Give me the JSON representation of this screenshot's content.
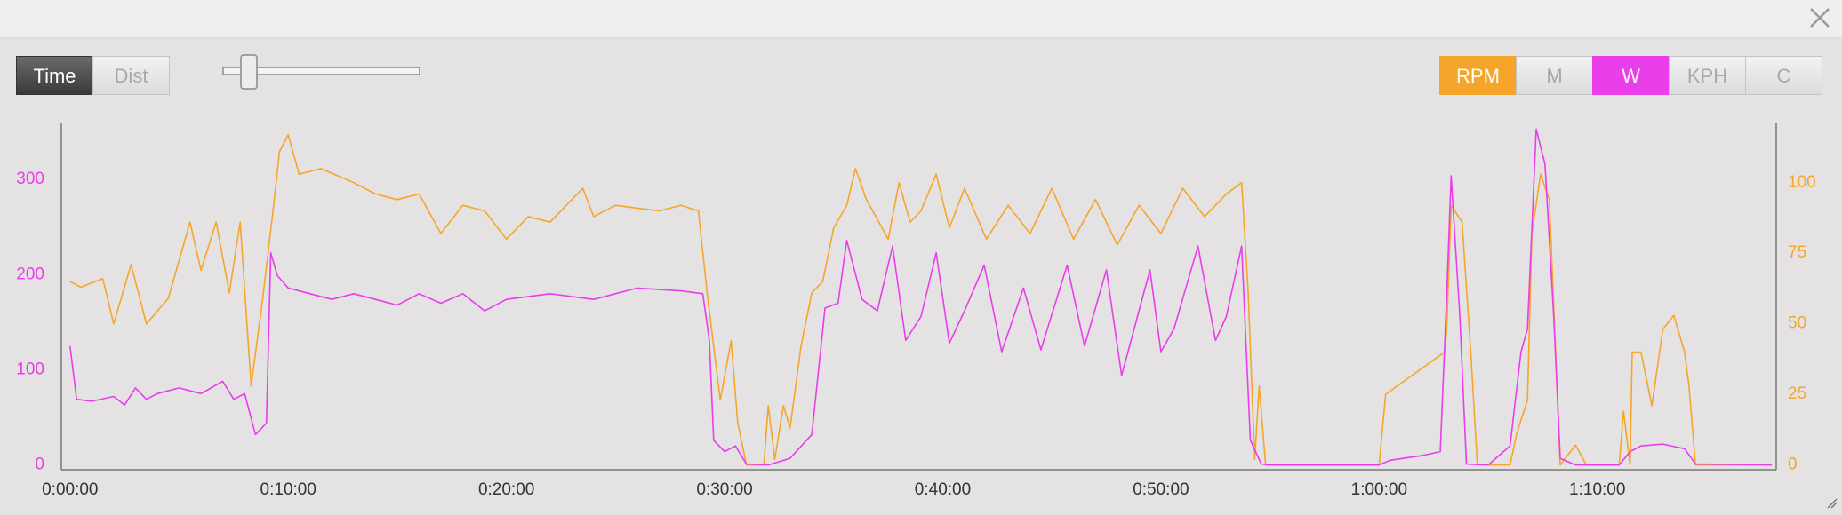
{
  "ui": {
    "mode_buttons": [
      {
        "label": "Time",
        "active": true
      },
      {
        "label": "Dist",
        "active": false
      }
    ],
    "metric_buttons": [
      {
        "label": "RPM",
        "active": true,
        "color": "#f5a62a"
      },
      {
        "label": "M",
        "active": false,
        "color": "#f5a62a"
      },
      {
        "label": "W",
        "active": true,
        "color": "#e93ee9"
      },
      {
        "label": "KPH",
        "active": false,
        "color": "#f5a62a"
      },
      {
        "label": "C",
        "active": false,
        "color": "#f5a62a"
      }
    ]
  },
  "chart_data": {
    "type": "line",
    "xlim": [
      -0.4,
      78.2
    ],
    "xticks": [
      {
        "value": 0,
        "label": "0:00:00"
      },
      {
        "value": 10,
        "label": "0:10:00"
      },
      {
        "value": 20,
        "label": "0:20:00"
      },
      {
        "value": 30,
        "label": "0:30:00"
      },
      {
        "value": 40,
        "label": "0:40:00"
      },
      {
        "value": 50,
        "label": "0:50:00"
      },
      {
        "value": 60,
        "label": "1:00:00"
      },
      {
        "value": 70,
        "label": "1:10:00"
      }
    ],
    "ylim": [
      -5,
      359
    ],
    "yticks": [
      0,
      100,
      200,
      300
    ],
    "y2lim": [
      -1.7,
      121
    ],
    "y2ticks": [
      0,
      25,
      50,
      75,
      100
    ],
    "series": [
      {
        "color": "#e93ee9",
        "axis": "y",
        "x": [
          0,
          0.3,
          1,
          2,
          2.5,
          3,
          3.5,
          4,
          5,
          6,
          7,
          7.5,
          8,
          8.5,
          9,
          9.2,
          9.5,
          10,
          11,
          12,
          13,
          14,
          15,
          16,
          17,
          18,
          19,
          20,
          22,
          24,
          26,
          28,
          29,
          29.3,
          29.5,
          30,
          30.5,
          31,
          32,
          33,
          34,
          34.6,
          35.2,
          35.6,
          36.3,
          37,
          37.7,
          38.3,
          39,
          39.7,
          40.3,
          41,
          41.9,
          42.7,
          43.7,
          44.5,
          45.7,
          46.5,
          47.5,
          48.2,
          49.5,
          50,
          50.6,
          51.7,
          52.5,
          53,
          53.7,
          54.1,
          54.6,
          55,
          60,
          60.5,
          62,
          62.8,
          63.1,
          63.3,
          63.7,
          64,
          65,
          66,
          66.5,
          66.8,
          67.2,
          67.6,
          68,
          68.3,
          69,
          71,
          71.5,
          72,
          73,
          74,
          74.5,
          78
        ],
        "values": [
          125,
          69,
          67,
          72,
          63,
          81,
          69,
          75,
          81,
          75,
          88,
          69,
          75,
          32,
          44,
          223,
          199,
          186,
          180,
          174,
          180,
          174,
          168,
          180,
          170,
          180,
          162,
          174,
          180,
          174,
          186,
          183,
          180,
          131,
          26,
          14,
          20,
          1,
          0,
          7,
          32,
          165,
          170,
          236,
          174,
          162,
          230,
          131,
          156,
          223,
          128,
          162,
          210,
          119,
          186,
          121,
          210,
          125,
          205,
          94,
          205,
          119,
          143,
          230,
          131,
          156,
          230,
          26,
          1,
          0,
          0,
          5,
          10,
          14,
          180,
          304,
          156,
          1,
          0,
          20,
          119,
          143,
          353,
          316,
          156,
          7,
          0,
          0,
          14,
          20,
          22,
          17,
          1,
          0
        ]
      },
      {
        "color": "#f5a62a",
        "axis": "y2",
        "x": [
          0,
          0.5,
          1.5,
          2,
          2.8,
          3.5,
          4.5,
          5.5,
          6,
          6.7,
          7.3,
          7.8,
          8.3,
          8.8,
          9.3,
          9.6,
          10,
          10.5,
          11.5,
          13,
          14,
          15,
          16,
          17,
          18,
          19,
          20,
          21,
          22,
          23.5,
          24,
          25,
          26,
          27,
          28,
          28.8,
          29.2,
          29.8,
          30.3,
          30.6,
          31,
          31.8,
          32,
          32.3,
          32.7,
          33,
          33.5,
          34,
          34.5,
          35,
          35.6,
          36,
          36.5,
          37.5,
          38,
          38.5,
          39,
          39.7,
          40.3,
          41,
          42,
          43,
          44,
          45,
          46,
          47,
          48,
          49,
          50,
          51,
          52,
          53,
          53.7,
          54,
          54.3,
          54.5,
          54.8,
          60,
          60.3,
          63,
          63.1,
          63.3,
          63.8,
          64.2,
          64.5,
          66,
          66.3,
          66.8,
          67,
          67.4,
          67.8,
          68.3,
          69,
          69.5,
          71,
          71.2,
          71.5,
          71.6,
          72,
          72.5,
          73,
          73.5,
          74,
          74.2,
          74.5,
          78
        ],
        "values": [
          65,
          63,
          66,
          50,
          71,
          50,
          59,
          86,
          69,
          86,
          61,
          86,
          28,
          57,
          90,
          111,
          117,
          103,
          105,
          100,
          96,
          94,
          96,
          82,
          92,
          90,
          80,
          88,
          86,
          98,
          88,
          92,
          91,
          90,
          92,
          90,
          61,
          23,
          44,
          15,
          0,
          0,
          21,
          2,
          21,
          13,
          42,
          61,
          65,
          84,
          92,
          105,
          94,
          80,
          100,
          86,
          90,
          103,
          84,
          98,
          80,
          92,
          82,
          98,
          80,
          94,
          78,
          92,
          82,
          98,
          88,
          96,
          100,
          61,
          2,
          28,
          0,
          0,
          25,
          40,
          48,
          92,
          86,
          40,
          0,
          0,
          11,
          23,
          82,
          103,
          94,
          0,
          7,
          0,
          0,
          19,
          0,
          40,
          40,
          21,
          48,
          53,
          40,
          28,
          0,
          0
        ]
      }
    ]
  }
}
